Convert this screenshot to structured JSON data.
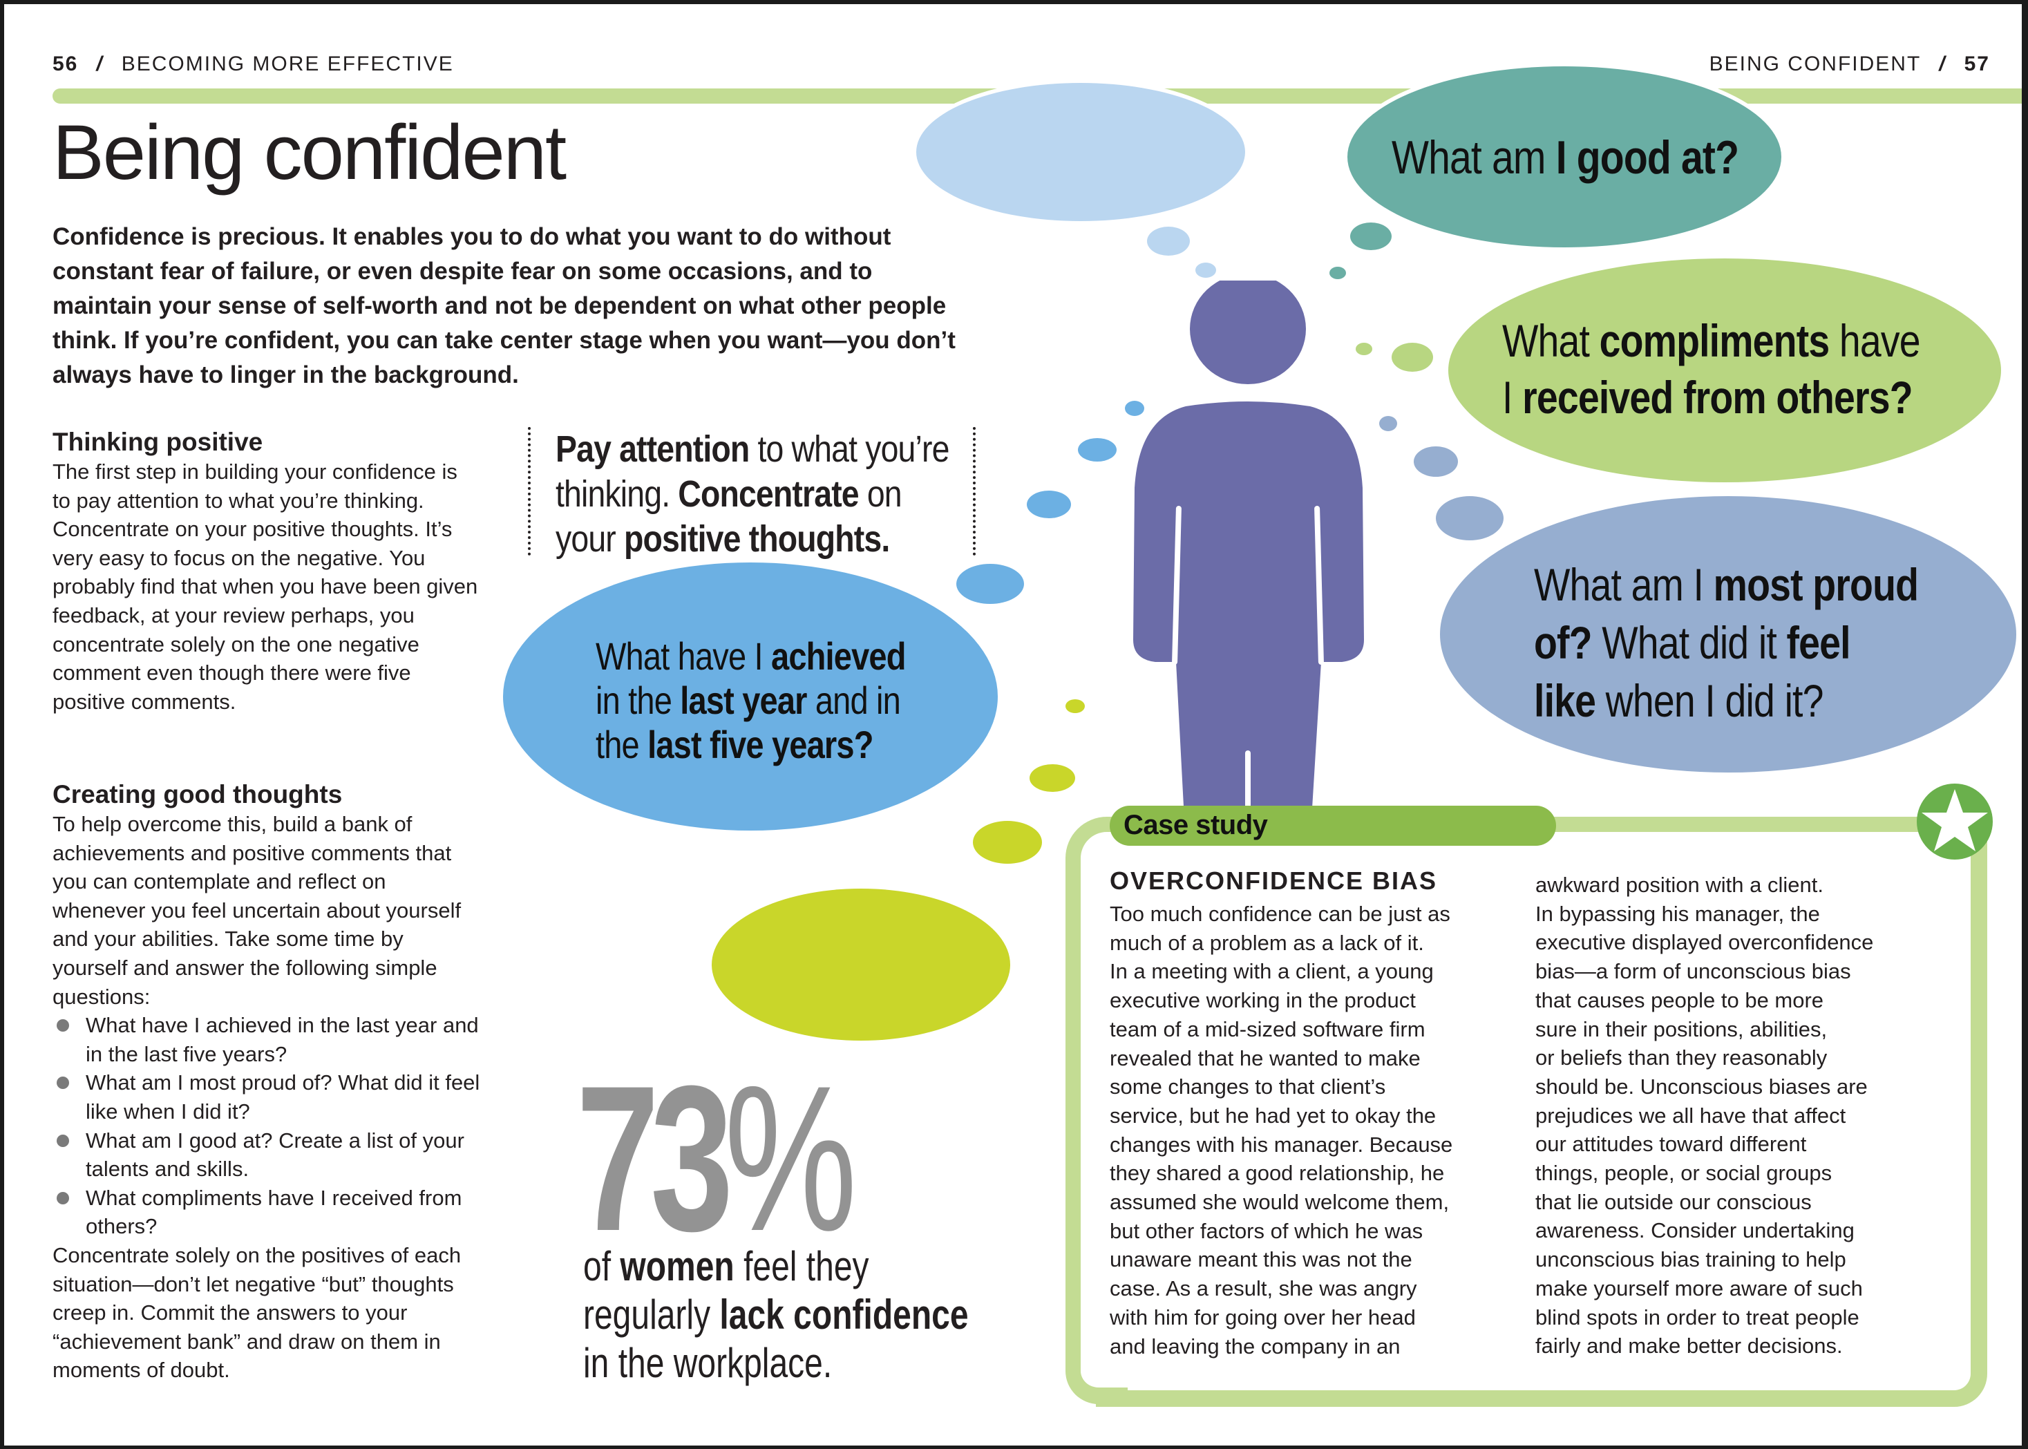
{
  "header": {
    "left_page_number": "56",
    "left_section": "BECOMING MORE EFFECTIVE",
    "right_section": "BEING CONFIDENT",
    "right_page_number": "57",
    "separator": "/"
  },
  "title": "Being confident",
  "intro": "Confidence is precious. It enables you to do what you want to do without constant fear of failure, or even despite fear on some occasions, and to maintain your sense of self-worth and not be dependent on what other people think. If you’re confident, you can take center stage when you want—you don’t always have to linger in the background.",
  "thinking_positive": {
    "heading": "Thinking positive",
    "body": "The first step in building your confidence is to pay attention to what you’re thinking. Concentrate on your positive thoughts. It’s very easy to focus on the negative. You probably find that when you have been given feedback, at your review perhaps, you concentrate solely on the one negative comment even though there were five positive comments."
  },
  "creating_good_thoughts": {
    "heading": "Creating good thoughts",
    "body": "To help overcome this, build a bank of achievements and positive comments that you can contemplate and reflect on whenever you feel uncertain about yourself and your abilities. Take some time by yourself and answer the following simple questions:",
    "bullets": [
      "What have I achieved in the last year and in the last five years?",
      "What am I most proud of? What did it feel like when I did it?",
      "What am I good at? Create a list of your talents and skills.",
      "What compliments have I received from others?"
    ],
    "closing": "Concentrate solely on the positives of each situation—don’t let negative “but” thoughts creep in. Commit the answers to your “achievement bank” and draw on them in moments of doubt."
  },
  "pull_quote": {
    "parts": [
      {
        "t": "Pay attention",
        "b": true
      },
      {
        "t": " to what you’re",
        "b": false
      },
      {
        "t": "\nthinking. ",
        "b": false
      },
      {
        "t": "Concentrate",
        "b": true
      },
      {
        "t": " on",
        "b": false
      },
      {
        "t": "\nyour ",
        "b": false
      },
      {
        "t": "positive thoughts.",
        "b": true
      }
    ]
  },
  "bubbles": {
    "achieved": {
      "color": "#6cb0e3",
      "lines": [
        [
          {
            "t": "What have I ",
            "b": false
          },
          {
            "t": "achieved",
            "b": true
          }
        ],
        [
          {
            "t": "in the ",
            "b": false
          },
          {
            "t": "last year",
            "b": true
          },
          {
            "t": " and in",
            "b": false
          }
        ],
        [
          {
            "t": "the ",
            "b": false
          },
          {
            "t": "last five years?",
            "b": true
          }
        ]
      ]
    },
    "good_at": {
      "color": "#6aaea4",
      "lines": [
        [
          {
            "t": "What am ",
            "b": false
          },
          {
            "t": "I good at?",
            "b": true
          }
        ]
      ]
    },
    "compliments": {
      "color": "#b8d681",
      "lines": [
        [
          {
            "t": "What ",
            "b": false
          },
          {
            "t": "compliments",
            "b": true
          },
          {
            "t": " have",
            "b": false
          }
        ],
        [
          {
            "t": "I ",
            "b": false
          },
          {
            "t": "received from others?",
            "b": true
          }
        ]
      ]
    },
    "proud": {
      "color": "#96aed0",
      "lines": [
        [
          {
            "t": "What am I ",
            "b": false
          },
          {
            "t": "most proud",
            "b": true
          }
        ],
        [
          {
            "t": "of?",
            "b": true
          },
          {
            "t": " What did it ",
            "b": false
          },
          {
            "t": "feel",
            "b": true
          }
        ],
        [
          {
            "t": "like",
            "b": true
          },
          {
            "t": " when I did it?",
            "b": false
          }
        ]
      ]
    },
    "empty_blue_color": "#bad6f0",
    "empty_lime_color": "#c9d62a"
  },
  "figure": {
    "color": "#6b6ca8"
  },
  "statistic": {
    "value": "73",
    "percent_sign": "%",
    "parts": [
      {
        "t": "of ",
        "b": false
      },
      {
        "t": "women",
        "b": true
      },
      {
        "t": " feel they",
        "b": false
      },
      {
        "t": "\nregularly ",
        "b": false
      },
      {
        "t": "lack confidence",
        "b": true
      },
      {
        "t": "\nin the workplace.",
        "b": false
      }
    ]
  },
  "case_study": {
    "tab_label": "Case study",
    "heading": "OVERCONFIDENCE BIAS",
    "col1": "Too much confidence can be just as\nmuch of a problem as a lack of it.\nIn a meeting with a client, a young\nexecutive working in the product\nteam of a mid-sized software firm\nrevealed that he wanted to make\nsome changes to that client’s\nservice, but he had yet to okay the\nchanges with his manager. Because\nthey shared a good relationship, he\nassumed she would welcome them,\nbut other factors of which he was\nunaware meant this was not the\ncase. As a result, she was angry\nwith him for going over her head\nand leaving the company in an",
    "col2": "awkward position with a client.\nIn bypassing his manager, the\nexecutive displayed overconfidence\nbias—a form of unconscious bias\nthat causes people to be more\nsure in their positions, abilities,\nor beliefs than they reasonably\nshould be. Unconscious biases are\nprejudices we all have that affect\nour attitudes toward different\nthings, people, or social groups\nthat lie outside our conscious\nawareness. Consider undertaking\nunconscious bias training to help\nmake yourself more aware of such\nblind spots in order to treat people\nfairly and make better decisions.",
    "badge_icon": "star-icon"
  },
  "colors": {
    "rule": "#c3dc93",
    "case_tab": "#8cbb4b",
    "badge": "#6ab04c",
    "stat_gray": "#939393"
  }
}
